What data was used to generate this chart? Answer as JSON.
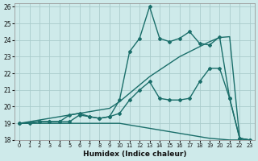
{
  "xlabel": "Humidex (Indice chaleur)",
  "background_color": "#ceeaea",
  "grid_color": "#aacccc",
  "line_color": "#1a6e6a",
  "xlim": [
    -0.5,
    23.5
  ],
  "ylim": [
    18,
    26.2
  ],
  "xticks": [
    0,
    1,
    2,
    3,
    4,
    5,
    6,
    7,
    8,
    9,
    10,
    11,
    12,
    13,
    14,
    15,
    16,
    17,
    18,
    19,
    20,
    21,
    22,
    23
  ],
  "yticks": [
    18,
    19,
    20,
    21,
    22,
    23,
    24,
    25,
    26
  ],
  "series": [
    {
      "x": [
        0,
        1,
        2,
        3,
        4,
        5,
        6,
        7,
        8,
        9,
        10,
        11,
        12,
        13,
        14,
        15,
        16,
        17,
        18,
        19,
        20,
        21,
        22,
        23
      ],
      "y": [
        19.0,
        19.0,
        19.0,
        19.0,
        19.0,
        19.0,
        19.0,
        19.0,
        19.0,
        19.0,
        19.0,
        18.9,
        18.8,
        18.7,
        18.6,
        18.5,
        18.4,
        18.3,
        18.2,
        18.1,
        18.05,
        18.0,
        18.0,
        18.0
      ],
      "marker": null,
      "linewidth": 1.0
    },
    {
      "x": [
        0,
        1,
        2,
        3,
        4,
        5,
        6,
        7,
        8,
        9,
        10,
        11,
        12,
        13,
        14,
        15,
        16,
        17,
        18,
        19,
        20,
        21,
        22,
        23
      ],
      "y": [
        19.0,
        19.1,
        19.2,
        19.3,
        19.4,
        19.5,
        19.6,
        19.7,
        19.8,
        19.9,
        20.3,
        20.8,
        21.3,
        21.8,
        22.2,
        22.6,
        23.0,
        23.3,
        23.6,
        23.9,
        24.15,
        24.2,
        18.1,
        18.0
      ],
      "marker": null,
      "linewidth": 1.0
    },
    {
      "x": [
        0,
        1,
        2,
        3,
        4,
        5,
        6,
        7,
        8,
        9,
        10,
        11,
        12,
        13,
        14,
        15,
        16,
        17,
        18,
        19,
        20,
        21,
        22,
        23
      ],
      "y": [
        19.0,
        19.0,
        19.1,
        19.1,
        19.1,
        19.1,
        19.5,
        19.4,
        19.3,
        19.4,
        19.6,
        20.4,
        21.0,
        21.5,
        20.5,
        20.4,
        20.4,
        20.5,
        21.5,
        22.3,
        22.3,
        20.5,
        18.1,
        18.0
      ],
      "marker": "D",
      "markersize": 2.0,
      "linewidth": 1.0
    },
    {
      "x": [
        0,
        2,
        3,
        4,
        5,
        6,
        7,
        8,
        9,
        10,
        11,
        12,
        13,
        14,
        15,
        16,
        17,
        18,
        19,
        20,
        21,
        22,
        23
      ],
      "y": [
        19.0,
        19.1,
        19.1,
        19.1,
        19.5,
        19.6,
        19.4,
        19.3,
        19.4,
        20.4,
        23.3,
        24.1,
        26.0,
        24.1,
        23.9,
        24.1,
        24.5,
        23.8,
        23.7,
        24.2,
        20.5,
        18.1,
        18.0
      ],
      "marker": "D",
      "markersize": 2.0,
      "linewidth": 1.0
    }
  ]
}
